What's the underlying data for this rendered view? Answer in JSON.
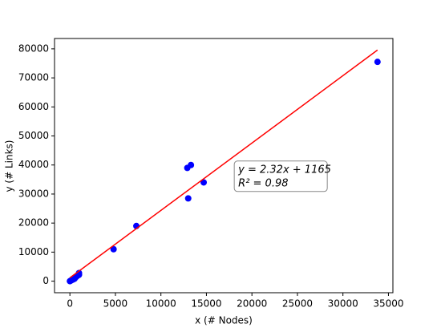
{
  "chart_data": {
    "type": "scatter",
    "x_label": "x (# Nodes)",
    "y_label": "y (# Links)",
    "xlim": [
      -1690,
      35490
    ],
    "ylim": [
      -3980,
      83560
    ],
    "xticks": [
      0,
      5000,
      10000,
      15000,
      20000,
      25000,
      30000,
      35000
    ],
    "yticks": [
      0,
      10000,
      20000,
      30000,
      40000,
      50000,
      60000,
      70000,
      80000
    ],
    "series": [
      {
        "type": "scatter",
        "color": "#0000ff",
        "x": [
          0,
          100,
          300,
          500,
          700,
          900,
          1000,
          1000,
          4800,
          7300,
          12900,
          13300,
          13000,
          14700,
          33800
        ],
        "values": [
          0,
          200,
          500,
          800,
          1500,
          2000,
          2800,
          2200,
          11000,
          19000,
          39000,
          40000,
          28500,
          34000,
          75500
        ]
      },
      {
        "type": "line",
        "color": "#ff0000",
        "x": [
          0,
          33800
        ],
        "values": [
          1165,
          79581
        ]
      }
    ],
    "annotation": {
      "lines": [
        "y = 2.32x + 1165",
        "R² = 0.98"
      ],
      "x": 18500,
      "y": 37500
    }
  }
}
